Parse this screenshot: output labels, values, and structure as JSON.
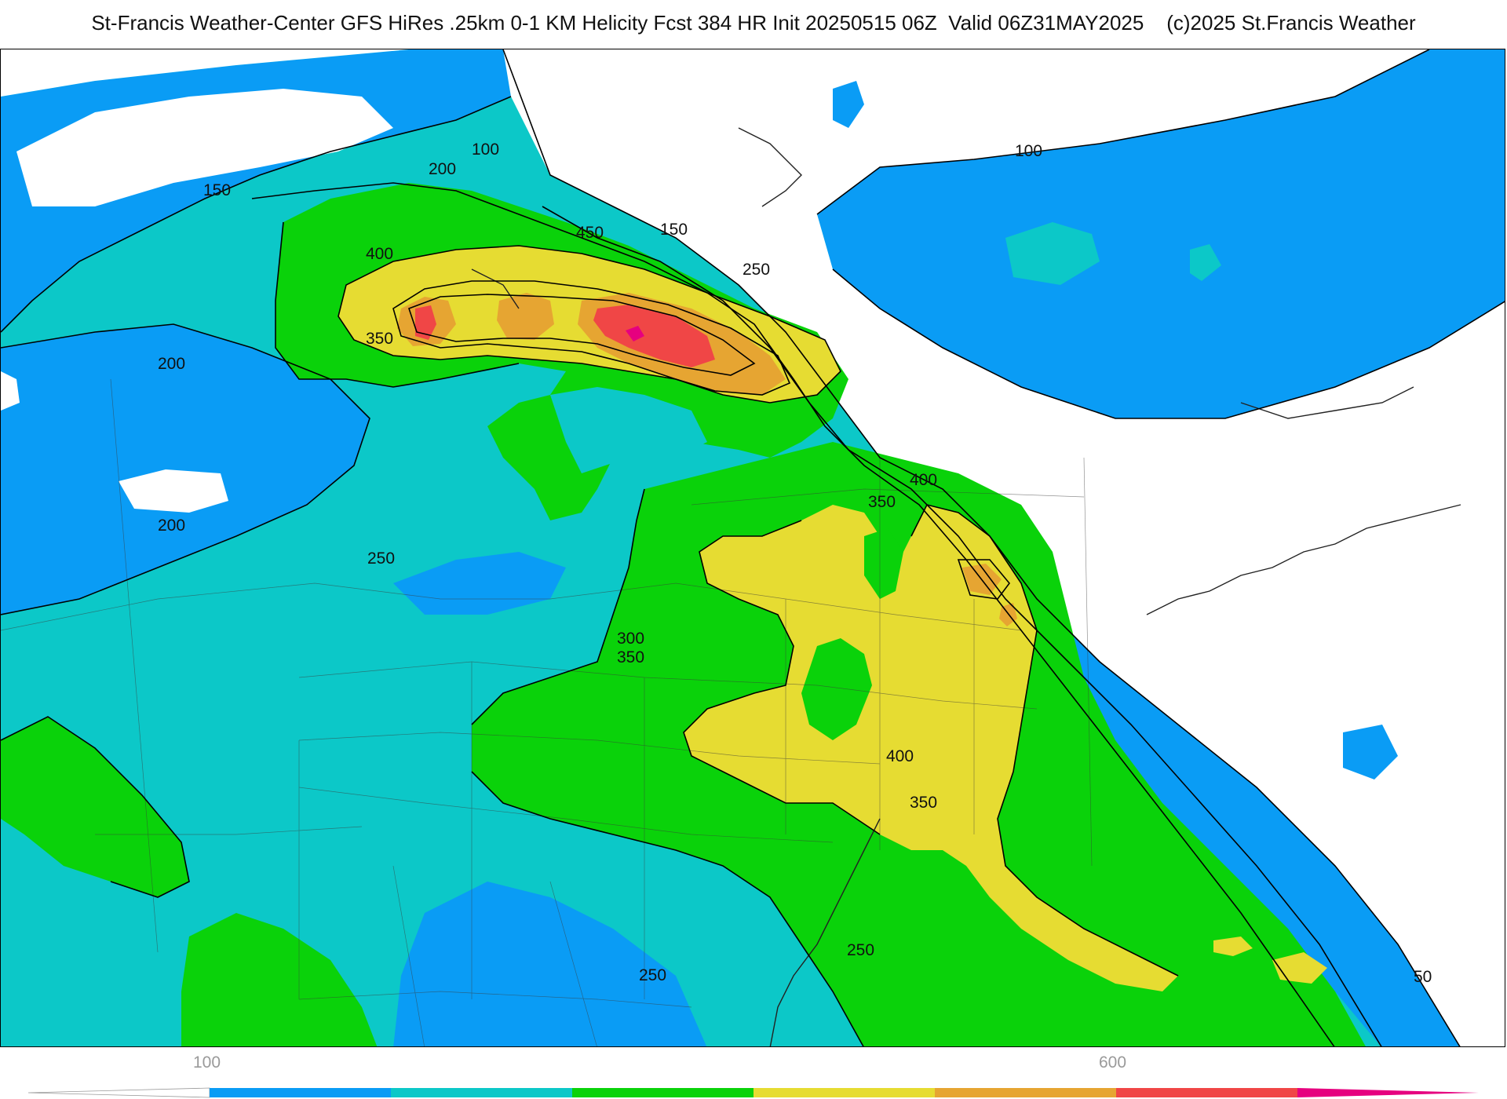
{
  "header": {
    "title": "St-Francis Weather-Center GFS HiRes .25km 0-1 KM Helicity Fcst 384 HR Init 20250515 06Z  Valid 06Z31MAY2025    (c)2025 St.Francis Weather"
  },
  "map": {
    "field": "0-1 KM Helicity",
    "contour_labels": [
      "100",
      "200",
      "150",
      "450",
      "150",
      "250",
      "400",
      "350",
      "200",
      "200",
      "250",
      "400",
      "350",
      "300",
      "350",
      "400",
      "350",
      "250",
      "250",
      "100",
      "50"
    ]
  },
  "colorbar": {
    "tick_labels": [
      "100",
      "600"
    ],
    "colors": [
      "#ffffff",
      "#0a9cf5",
      "#0cc8c8",
      "#0ad20a",
      "#e6dc32",
      "#e6a532",
      "#f04646",
      "#e6007f"
    ]
  }
}
